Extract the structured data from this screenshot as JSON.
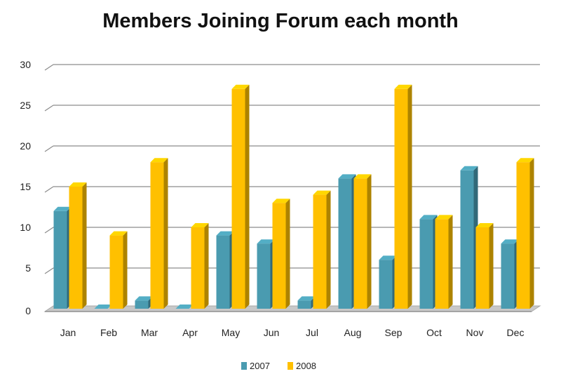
{
  "chart_data": {
    "type": "bar",
    "title": "Members Joining Forum each month",
    "xlabel": "",
    "ylabel": "",
    "categories": [
      "Jan",
      "Feb",
      "Mar",
      "Apr",
      "May",
      "Jun",
      "Jul",
      "Aug",
      "Sep",
      "Oct",
      "Nov",
      "Dec"
    ],
    "series": [
      {
        "name": "2007",
        "values": [
          12,
          0,
          1,
          0,
          9,
          8,
          1,
          16,
          6,
          11,
          17,
          8
        ],
        "color": "#4a9bb0"
      },
      {
        "name": "2008",
        "values": [
          15,
          9,
          18,
          10,
          27,
          13,
          14,
          16,
          27,
          11,
          10,
          18
        ],
        "color": "#ffc000"
      }
    ],
    "ylim": [
      0,
      30
    ],
    "yticks": [
      "0",
      "5",
      "10",
      "15",
      "20",
      "25",
      "30"
    ],
    "grid": true,
    "legend_position": "bottom",
    "style": "3d-clustered-bar"
  }
}
